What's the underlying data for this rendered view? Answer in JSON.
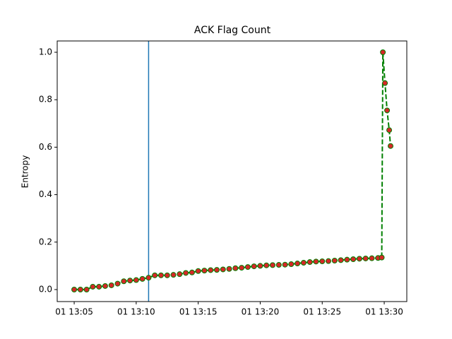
{
  "chart_data": {
    "type": "line",
    "title": "ACK Flag Count",
    "y_label": "Entropy",
    "x": [
      785,
      785.5,
      786,
      786.5,
      787,
      787.5,
      788,
      788.5,
      789,
      789.5,
      790,
      790.5,
      791,
      791.5,
      792,
      792.5,
      793,
      793.5,
      794,
      794.5,
      795,
      795.5,
      796,
      796.5,
      797,
      797.5,
      798,
      798.5,
      799,
      799.5,
      800,
      800.5,
      801,
      801.5,
      802,
      802.5,
      803,
      803.5,
      804,
      804.5,
      805,
      805.5,
      806,
      806.5,
      807,
      807.5,
      808,
      808.5,
      809,
      809.5,
      809.8,
      809.89,
      810.06,
      810.23,
      810.4,
      810.51
    ],
    "series": [
      {
        "color": "#008000",
        "marker_color": "#d62728",
        "values": [
          0,
          0,
          0,
          0.012,
          0.012,
          0.015,
          0.018,
          0.025,
          0.035,
          0.038,
          0.04,
          0.045,
          0.05,
          0.06,
          0.06,
          0.06,
          0.062,
          0.065,
          0.07,
          0.072,
          0.078,
          0.08,
          0.082,
          0.083,
          0.085,
          0.087,
          0.09,
          0.092,
          0.095,
          0.098,
          0.1,
          0.102,
          0.103,
          0.104,
          0.105,
          0.107,
          0.11,
          0.113,
          0.116,
          0.118,
          0.119,
          0.12,
          0.122,
          0.124,
          0.126,
          0.128,
          0.13,
          0.131,
          0.132,
          0.133,
          0.135,
          1.0,
          0.87,
          0.755,
          0.672,
          0.605
        ]
      }
    ],
    "vline": {
      "x": 791,
      "color": "#1f77b4"
    },
    "xlim": [
      783.63,
      811.82
    ],
    "xticks": [
      {
        "value": 785,
        "label": "01 13:05"
      },
      {
        "value": 790,
        "label": "01 13:10"
      },
      {
        "value": 795,
        "label": "01 13:15"
      },
      {
        "value": 800,
        "label": "01 13:20"
      },
      {
        "value": 805,
        "label": "01 13:25"
      },
      {
        "value": 810,
        "label": "01 13:30"
      }
    ],
    "ylim": [
      -0.0506,
      1.0476
    ],
    "yticks": [
      {
        "value": 0,
        "label": "0.0"
      },
      {
        "value": 0.2,
        "label": "0.2"
      },
      {
        "value": 0.4,
        "label": "0.4"
      },
      {
        "value": 0.6,
        "label": "0.6"
      },
      {
        "value": 0.8,
        "label": "0.8"
      },
      {
        "value": 1,
        "label": "1.0"
      }
    ],
    "grid": false
  }
}
